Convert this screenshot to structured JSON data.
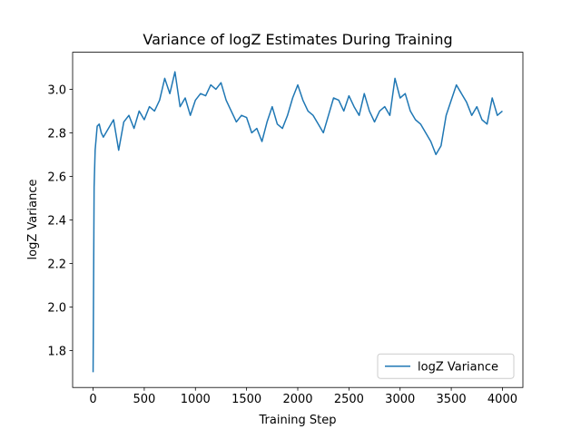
{
  "chart_data": {
    "type": "line",
    "title": "Variance of logZ Estimates During Training",
    "xlabel": "Training Step",
    "ylabel": "logZ Variance",
    "x": [
      0,
      10,
      20,
      40,
      60,
      80,
      100,
      150,
      200,
      250,
      300,
      350,
      400,
      450,
      500,
      550,
      600,
      650,
      700,
      750,
      800,
      850,
      900,
      950,
      1000,
      1050,
      1100,
      1150,
      1200,
      1250,
      1300,
      1350,
      1400,
      1450,
      1500,
      1550,
      1600,
      1650,
      1700,
      1750,
      1800,
      1850,
      1900,
      1950,
      2000,
      2050,
      2100,
      2150,
      2200,
      2250,
      2300,
      2350,
      2400,
      2450,
      2500,
      2550,
      2600,
      2650,
      2700,
      2750,
      2800,
      2850,
      2900,
      2950,
      3000,
      3050,
      3100,
      3150,
      3200,
      3250,
      3300,
      3350,
      3400,
      3450,
      3500,
      3550,
      3600,
      3650,
      3700,
      3750,
      3800,
      3850,
      3900,
      3950,
      4000
    ],
    "series": [
      {
        "name": "logZ Variance",
        "color": "#1f77b4",
        "values": [
          1.7,
          2.55,
          2.72,
          2.83,
          2.84,
          2.8,
          2.78,
          2.82,
          2.86,
          2.72,
          2.85,
          2.88,
          2.82,
          2.9,
          2.86,
          2.92,
          2.9,
          2.95,
          3.05,
          2.98,
          3.08,
          2.92,
          2.96,
          2.88,
          2.95,
          2.98,
          2.97,
          3.02,
          3.0,
          3.03,
          2.95,
          2.9,
          2.85,
          2.88,
          2.87,
          2.8,
          2.82,
          2.76,
          2.85,
          2.92,
          2.84,
          2.82,
          2.88,
          2.96,
          3.02,
          2.95,
          2.9,
          2.88,
          2.84,
          2.8,
          2.88,
          2.96,
          2.95,
          2.9,
          2.97,
          2.92,
          2.88,
          2.98,
          2.9,
          2.85,
          2.9,
          2.92,
          2.88,
          3.05,
          2.96,
          2.98,
          2.9,
          2.86,
          2.84,
          2.8,
          2.76,
          2.7,
          2.74,
          2.88,
          2.95,
          3.02,
          2.98,
          2.94,
          2.88,
          2.92,
          2.86,
          2.84,
          2.96,
          2.88,
          2.9
        ]
      }
    ],
    "xlim": [
      -200,
      4200
    ],
    "xticks": [
      0,
      500,
      1000,
      1500,
      2000,
      2500,
      3000,
      3500,
      4000
    ],
    "ylim": [
      1.63,
      3.17
    ],
    "yticks": [
      1.8,
      {
        "value": 2,
        "label": "2.0"
      },
      2.2,
      2.4,
      2.6,
      2.8,
      {
        "value": 3,
        "label": "3.0"
      }
    ],
    "legend": "lower right"
  }
}
